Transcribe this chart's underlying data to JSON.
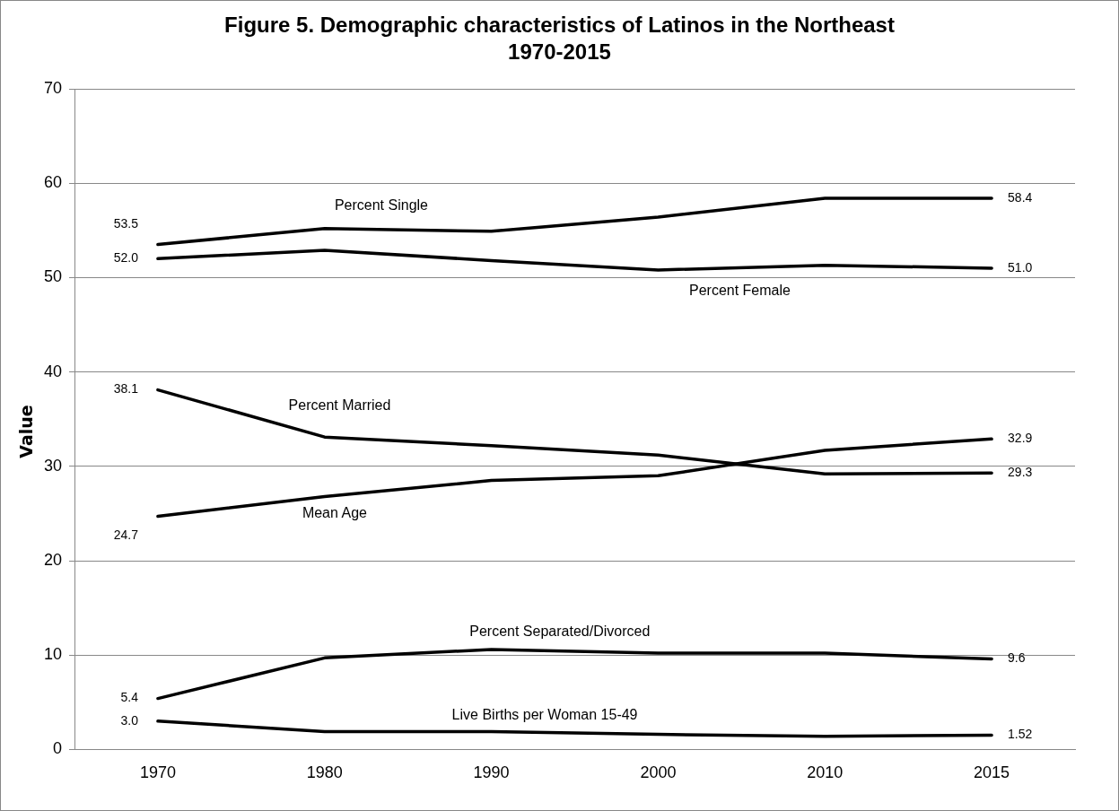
{
  "chart_data": {
    "type": "line",
    "title": "Figure 5. Demographic characteristics of Latinos in the Northeast 1970-2015",
    "ylabel": "Value",
    "categories": [
      "1970",
      "1980",
      "1990",
      "2000",
      "2010",
      "2015"
    ],
    "series": [
      {
        "name": "Percent Single",
        "color": "#000000",
        "values": [
          53.5,
          55.2,
          54.9,
          56.4,
          58.4,
          58.4
        ],
        "value_labels": [
          "53.5",
          null,
          null,
          null,
          null,
          "58.4"
        ]
      },
      {
        "name": "Percent Female",
        "color": "#000000",
        "values": [
          52.0,
          52.9,
          51.8,
          50.8,
          51.3,
          51.0
        ],
        "value_labels": [
          "52.0",
          null,
          null,
          null,
          null,
          "51.0"
        ]
      },
      {
        "name": "Percent Married",
        "color": "#000000",
        "values": [
          38.1,
          33.1,
          32.2,
          31.2,
          29.2,
          29.3
        ],
        "value_labels": [
          "38.1",
          null,
          null,
          null,
          null,
          "29.3"
        ]
      },
      {
        "name": "Mean Age",
        "color": "#000000",
        "values": [
          24.7,
          26.8,
          28.5,
          29.0,
          31.7,
          32.9
        ],
        "value_labels": [
          "24.7",
          null,
          null,
          null,
          null,
          "32.9"
        ]
      },
      {
        "name": "Percent Separated/Divorced",
        "color": "#000000",
        "values": [
          5.4,
          9.7,
          10.6,
          10.2,
          10.2,
          9.6
        ],
        "value_labels": [
          "5.4",
          null,
          null,
          null,
          null,
          "9.6"
        ]
      },
      {
        "name": "Live Births per Woman 15-49",
        "color": "#000000",
        "values": [
          3.0,
          1.9,
          1.9,
          1.6,
          1.4,
          1.52
        ],
        "value_labels": [
          "3.0",
          null,
          null,
          null,
          null,
          "1.52"
        ]
      }
    ],
    "ylim": [
      0,
      70
    ],
    "yticks": [
      0,
      10,
      20,
      30,
      40,
      50,
      60,
      70
    ],
    "grid": "y",
    "legend": false,
    "marker": "none",
    "line_style": "solid"
  }
}
